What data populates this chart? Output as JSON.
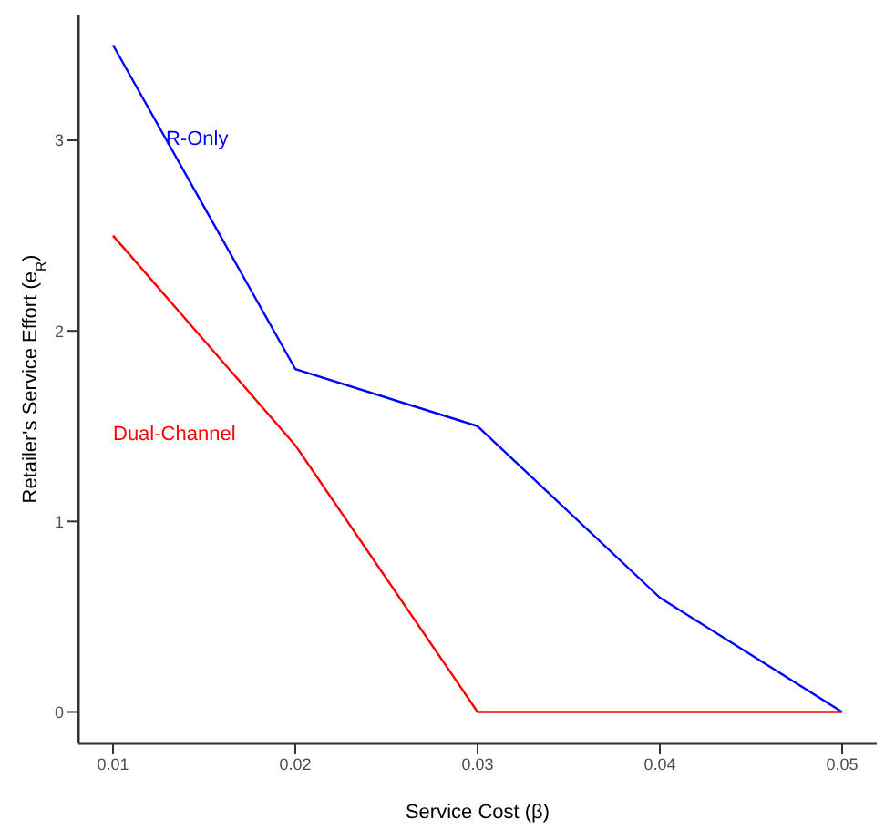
{
  "chart_data": {
    "type": "line",
    "xlabel": "Service Cost (β)",
    "ylabel": "Retailer's Service Effort (e$_{R}$)",
    "x": [
      0.01,
      0.02,
      0.03,
      0.04,
      0.05
    ],
    "series": [
      {
        "name": "R-Only",
        "color": "#0000ff",
        "values": [
          3.5,
          1.8,
          1.5,
          0.6,
          0
        ]
      },
      {
        "name": "Dual-Channel",
        "color": "#ff0000",
        "values": [
          2.5,
          1.4,
          0,
          0,
          0
        ]
      }
    ],
    "xlim": [
      0.0081,
      0.0519
    ],
    "xticks": [
      0.01,
      0.02,
      0.03,
      0.04,
      0.05
    ],
    "ylim": [
      -0.165,
      3.66
    ],
    "yticks": [
      0,
      1,
      2,
      3
    ],
    "grid": false,
    "legend": false,
    "marker": "none",
    "line_style": "solid"
  }
}
